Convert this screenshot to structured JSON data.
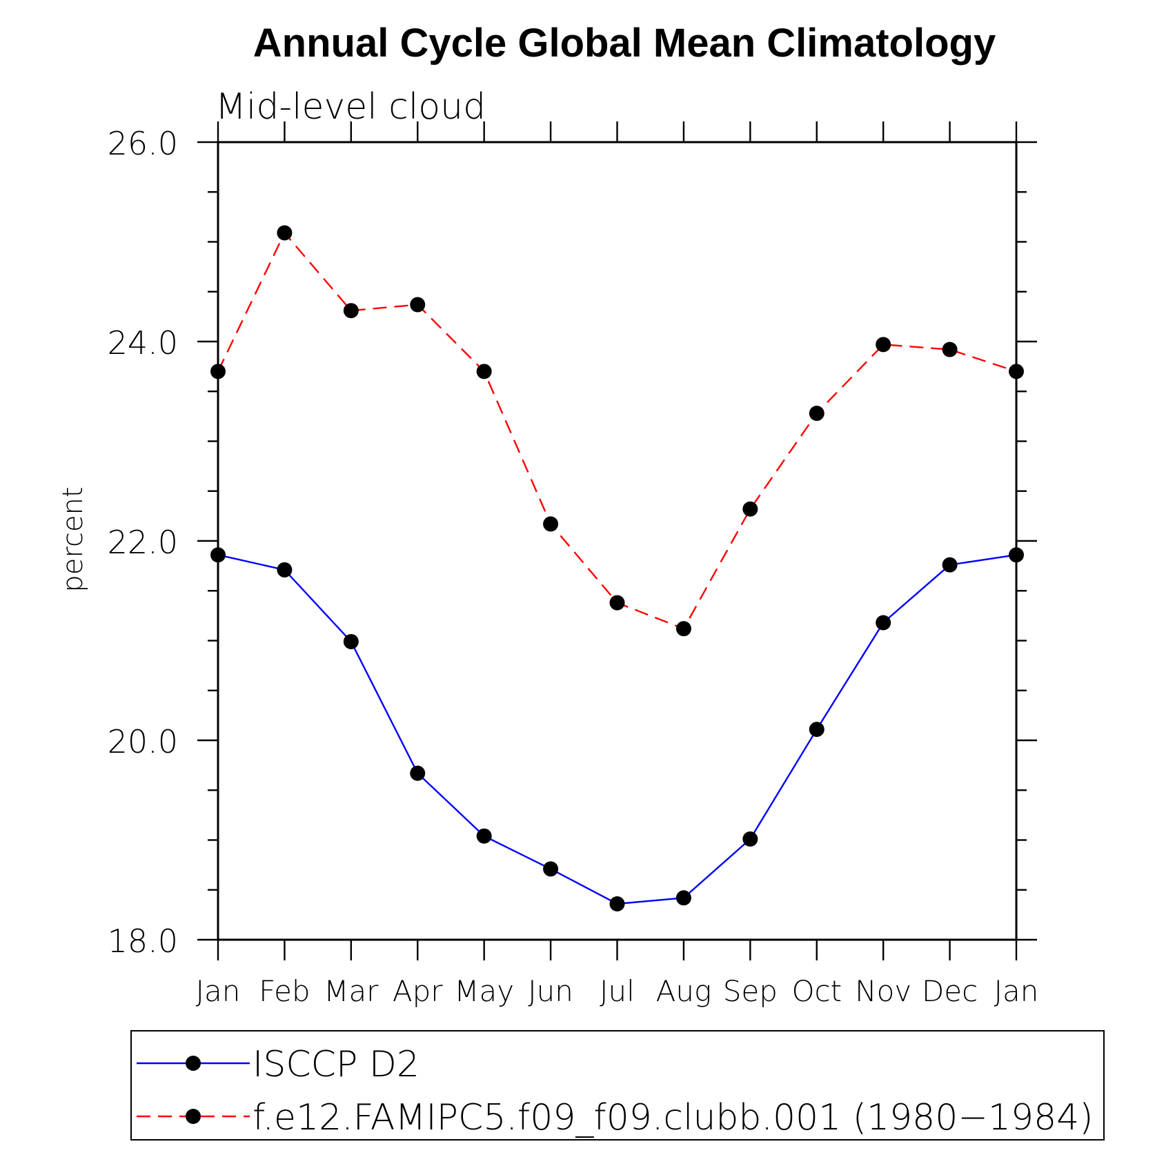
{
  "chart_data": {
    "type": "line",
    "title": "Annual Cycle Global Mean Climatology",
    "subtitle": "Mid-level cloud",
    "ylabel": "percent",
    "xlabel": "",
    "categories": [
      "Jan",
      "Feb",
      "Mar",
      "Apr",
      "May",
      "Jun",
      "Jul",
      "Aug",
      "Sep",
      "Oct",
      "Nov",
      "Dec",
      "Jan"
    ],
    "ylim": [
      18.0,
      26.0
    ],
    "yticks": [
      18.0,
      20.0,
      22.0,
      24.0,
      26.0
    ],
    "ytick_labels": [
      "18.0",
      "20.0",
      "22.0",
      "24.0",
      "26.0"
    ],
    "y_minor_step": 0.5,
    "grid": false,
    "legend_position": "bottom",
    "series": [
      {
        "name": "ISCCP D2",
        "color": "#0000ff",
        "dash": "solid",
        "marker": "filled-circle",
        "values": [
          21.86,
          21.71,
          20.99,
          19.67,
          19.04,
          18.71,
          18.36,
          18.42,
          19.01,
          20.11,
          21.18,
          21.76,
          21.86
        ]
      },
      {
        "name": "f.e12.FAMIPC5.f09_f09.clubb.001 (1980−1984)",
        "color": "#ff0000",
        "dash": "dashed",
        "marker": "filled-circle",
        "values": [
          23.7,
          25.09,
          24.31,
          24.37,
          23.7,
          22.17,
          21.38,
          21.12,
          22.32,
          23.28,
          23.97,
          23.92,
          23.7
        ]
      }
    ]
  }
}
